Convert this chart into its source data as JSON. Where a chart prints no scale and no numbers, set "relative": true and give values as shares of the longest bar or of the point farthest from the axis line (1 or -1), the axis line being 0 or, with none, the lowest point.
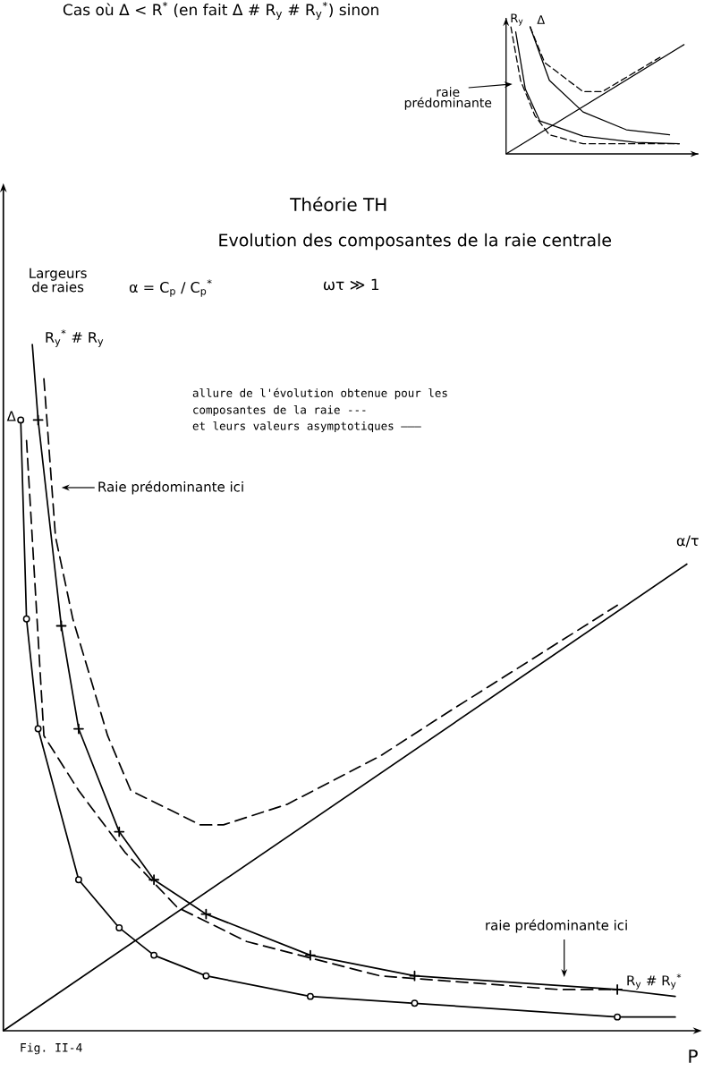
{
  "chart_data": [
    {
      "type": "line",
      "relative": true,
      "tick_labels": false,
      "annotations": [
        "Cas où Δ < R$^{*}$ (en fait Δ # R$_{y}$ # R$_{y}$$^{*}$) sinon",
        "R$_{y}$",
        "Δ",
        "raie prédominante"
      ],
      "categories": [
        null,
        null,
        null,
        null,
        null,
        null,
        null,
        null,
        null,
        null,
        null,
        null,
        null,
        null,
        null,
        null,
        null,
        null,
        null,
        null,
        null,
        null,
        null,
        null,
        null,
        null,
        null,
        null,
        null,
        null,
        null,
        null,
        null,
        null,
        null,
        null,
        null,
        null,
        null,
        null,
        null
      ],
      "series": [
        {
          "line_style": "dashed",
          "marker": "none",
          "color": "#000000",
          "values": [
            null,
            1,
            null,
            0.58,
            null,
            null,
            0.3,
            null,
            null,
            0.15,
            null,
            null,
            null,
            null,
            null,
            null,
            0.08,
            null,
            null,
            null,
            null,
            null,
            null,
            null,
            null,
            null,
            null,
            null,
            null,
            null,
            null,
            null,
            null,
            null,
            null,
            null,
            0.08,
            null,
            null,
            null,
            null
          ]
        },
        {
          "line_style": "solid",
          "marker": "none",
          "color": "#000000",
          "values": [
            null,
            null,
            0.96,
            null,
            0.51,
            null,
            null,
            0.26,
            null,
            null,
            null,
            null,
            null,
            null,
            null,
            null,
            0.14,
            null,
            null,
            null,
            null,
            null,
            null,
            null,
            null,
            null,
            null,
            0.09,
            null,
            null,
            null,
            null,
            null,
            null,
            null,
            null,
            0.08,
            null,
            null,
            null,
            null
          ]
        },
        {
          "line_style": "solid",
          "marker": "none",
          "color": "#000000",
          "values": [
            null,
            null,
            null,
            null,
            null,
            1,
            null,
            null,
            null,
            0.58,
            null,
            null,
            null,
            null,
            null,
            null,
            0.33,
            null,
            null,
            null,
            null,
            null,
            null,
            null,
            null,
            0.19,
            null,
            null,
            null,
            null,
            null,
            null,
            null,
            null,
            0.15,
            null,
            null,
            null,
            null,
            null,
            null
          ]
        },
        {
          "line_style": "dashed",
          "marker": "none",
          "color": "#000000",
          "values": [
            null,
            null,
            null,
            null,
            null,
            1,
            null,
            null,
            0.72,
            null,
            null,
            null,
            null,
            null,
            null,
            null,
            0.49,
            null,
            null,
            null,
            0.49,
            null,
            null,
            null,
            null,
            null,
            null,
            null,
            null,
            null,
            null,
            null,
            0.76,
            null,
            null,
            null,
            null,
            null,
            null,
            null,
            null
          ]
        },
        {
          "line_style": "solid",
          "marker": "none",
          "color": "#000000",
          "values": [
            0,
            null,
            null,
            null,
            null,
            null,
            null,
            null,
            null,
            null,
            null,
            null,
            null,
            null,
            null,
            null,
            null,
            null,
            null,
            null,
            null,
            null,
            null,
            null,
            null,
            null,
            null,
            null,
            null,
            null,
            null,
            null,
            null,
            null,
            null,
            null,
            null,
            0.86,
            null,
            null,
            null
          ]
        }
      ]
    },
    {
      "type": "line",
      "relative": true,
      "tick_labels": false,
      "title": "Théorie TH",
      "subtitle": "Evolution des composantes de la raie centrale",
      "xlabel": "P",
      "ylabel": "Largeurs de raies",
      "annotations": [
        "ωτ ≫ 1",
        "α = C$_{p}$ / C$_{p}$$^{*}$",
        "R$_{y}$$^{*}$ # R$_{y}$",
        "Δ",
        "allure de l'évolution obtenue pour les",
        "composantes de la raie ---",
        "et leurs valeurs asymptotiques ———",
        "Raie prédominante ici",
        "α/τ",
        "raie prédominante ici",
        "R$_{y}$ # R$_{y}$$^{*}$",
        "Fig. II-4"
      ],
      "categories": [
        null,
        null,
        null,
        null,
        null,
        null,
        null,
        null,
        null,
        null,
        null,
        null,
        null,
        null,
        null,
        null,
        null,
        null,
        null,
        null,
        null,
        null,
        null,
        null,
        null,
        null,
        null,
        null,
        null,
        null,
        null,
        null,
        null,
        null,
        null,
        null,
        null,
        null,
        null,
        null,
        null,
        null,
        null,
        null,
        null,
        null,
        null,
        null,
        null,
        null,
        null,
        null,
        null,
        null,
        null,
        null,
        null,
        null,
        null,
        null,
        null,
        null,
        null,
        null,
        null,
        null,
        null,
        null,
        null,
        null,
        null,
        null,
        null,
        null,
        null,
        null,
        null,
        null,
        null,
        null,
        null,
        null,
        null,
        null,
        null,
        null,
        null,
        null,
        null,
        null,
        null,
        null,
        null,
        null,
        null,
        null,
        null,
        null,
        null,
        null,
        null,
        null,
        null,
        null,
        null,
        null,
        null,
        null,
        null,
        null,
        null,
        null,
        null,
        null,
        null,
        null,
        null,
        null,
        null,
        null,
        null
      ],
      "series": [
        {
          "line_style": "solid",
          "marker": "circle",
          "color": "#000000",
          "values": [
            null,
            null,
            null,
            0.89,
            0.6,
            null,
            0.44,
            null,
            null,
            null,
            null,
            null,
            null,
            0.22,
            null,
            null,
            null,
            null,
            null,
            null,
            0.15,
            null,
            null,
            null,
            null,
            null,
            0.11,
            null,
            null,
            null,
            null,
            null,
            null,
            null,
            null,
            0.08,
            null,
            null,
            null,
            null,
            null,
            null,
            null,
            null,
            null,
            null,
            null,
            null,
            null,
            null,
            null,
            null,
            null,
            0.05,
            null,
            null,
            null,
            null,
            null,
            null,
            null,
            null,
            null,
            null,
            null,
            null,
            null,
            null,
            null,
            null,
            null,
            0.04,
            null,
            null,
            null,
            null,
            null,
            null,
            null,
            null,
            null,
            null,
            null,
            null,
            null,
            null,
            null,
            null,
            null,
            null,
            null,
            null,
            null,
            null,
            null,
            null,
            null,
            null,
            null,
            null,
            null,
            null,
            null,
            null,
            null,
            null,
            0.02,
            null,
            null,
            null,
            null,
            null,
            null,
            null,
            null,
            null,
            null,
            null,
            null,
            null,
            null
          ]
        },
        {
          "line_style": "solid",
          "marker": "cross",
          "color": "#000000",
          "values": [
            null,
            null,
            null,
            null,
            null,
            null,
            0.89,
            null,
            null,
            null,
            0.59,
            null,
            null,
            0.44,
            null,
            null,
            null,
            null,
            null,
            null,
            0.29,
            null,
            null,
            null,
            null,
            null,
            0.22,
            null,
            null,
            null,
            null,
            null,
            null,
            null,
            null,
            0.17,
            null,
            null,
            null,
            null,
            null,
            null,
            null,
            null,
            null,
            null,
            null,
            null,
            null,
            null,
            null,
            null,
            null,
            0.11,
            null,
            null,
            null,
            null,
            null,
            null,
            null,
            null,
            null,
            null,
            null,
            null,
            null,
            null,
            null,
            null,
            null,
            0.08,
            null,
            null,
            null,
            null,
            null,
            null,
            null,
            null,
            null,
            null,
            null,
            null,
            null,
            null,
            null,
            null,
            null,
            null,
            null,
            null,
            null,
            null,
            null,
            null,
            null,
            null,
            null,
            null,
            null,
            null,
            null,
            null,
            null,
            null,
            0.06,
            null,
            null,
            null,
            null,
            null,
            null,
            null,
            null,
            null,
            null,
            null,
            null,
            null,
            null
          ]
        },
        {
          "line_style": "dashed",
          "marker": "none",
          "color": "#000000",
          "values": [
            null,
            null,
            null,
            null,
            null,
            null,
            null,
            0.95,
            null,
            0.72,
            null,
            null,
            0.6,
            null,
            null,
            null,
            null,
            null,
            0.43,
            null,
            null,
            null,
            0.35,
            null,
            null,
            null,
            null,
            null,
            null,
            null,
            null,
            null,
            null,
            null,
            0.3,
            null,
            null,
            null,
            0.3,
            null,
            null,
            null,
            null,
            null,
            null,
            null,
            null,
            null,
            null,
            0.33,
            null,
            null,
            null,
            null,
            null,
            null,
            null,
            null,
            null,
            null,
            null,
            null,
            null,
            null,
            null,
            0.4,
            null,
            null,
            null,
            null,
            null,
            null,
            null,
            null,
            null,
            null,
            0.46,
            null,
            null,
            null,
            null,
            null,
            null,
            null,
            null,
            null,
            null,
            null,
            null,
            null,
            null,
            null,
            null,
            null,
            null,
            null,
            null,
            null,
            null,
            null,
            null,
            null,
            null,
            null,
            null,
            null,
            0.62,
            null,
            null,
            null,
            null,
            null,
            null,
            null,
            null,
            null,
            null,
            null,
            null,
            null,
            null
          ]
        },
        {
          "line_style": "dashed",
          "marker": "none",
          "color": "#000000",
          "values": [
            null,
            null,
            null,
            null,
            0.86,
            null,
            null,
            0.43,
            null,
            null,
            null,
            null,
            null,
            0.35,
            null,
            null,
            null,
            null,
            null,
            null,
            null,
            0.26,
            null,
            null,
            null,
            null,
            null,
            null,
            null,
            null,
            0.18,
            null,
            null,
            null,
            null,
            null,
            null,
            null,
            null,
            null,
            null,
            null,
            0.13,
            null,
            null,
            null,
            null,
            null,
            null,
            null,
            null,
            null,
            null,
            null,
            null,
            null,
            null,
            null,
            null,
            null,
            null,
            null,
            null,
            null,
            null,
            0.08,
            null,
            null,
            null,
            null,
            null,
            null,
            null,
            null,
            null,
            null,
            null,
            null,
            null,
            null,
            null,
            null,
            null,
            null,
            null,
            null,
            null,
            null,
            null,
            null,
            null,
            null,
            null,
            null,
            null,
            null,
            0.06,
            null,
            null,
            null,
            null,
            null,
            null,
            null,
            null,
            0.06,
            null,
            null,
            null,
            null,
            null,
            null,
            null,
            null,
            null,
            null,
            null,
            null,
            null,
            null,
            null
          ]
        },
        {
          "line_style": "solid",
          "marker": "none",
          "color": "#000000",
          "values": [
            0,
            null,
            null,
            null,
            null,
            null,
            null,
            null,
            null,
            null,
            null,
            null,
            null,
            null,
            null,
            null,
            null,
            null,
            null,
            null,
            null,
            null,
            null,
            null,
            null,
            null,
            null,
            null,
            null,
            null,
            null,
            null,
            null,
            null,
            null,
            null,
            null,
            null,
            null,
            null,
            null,
            null,
            null,
            null,
            null,
            null,
            null,
            null,
            null,
            null,
            null,
            null,
            null,
            null,
            null,
            null,
            null,
            null,
            null,
            null,
            null,
            null,
            null,
            null,
            null,
            null,
            null,
            null,
            null,
            null,
            null,
            null,
            null,
            null,
            null,
            null,
            null,
            null,
            null,
            null,
            null,
            null,
            null,
            null,
            null,
            null,
            null,
            null,
            null,
            null,
            null,
            null,
            null,
            null,
            null,
            null,
            null,
            null,
            null,
            null,
            null,
            null,
            null,
            null,
            null,
            null,
            null,
            null,
            null,
            null,
            null,
            null,
            null,
            null,
            null,
            null,
            null,
            null,
            0.68,
            null,
            null
          ]
        },
        {
          "line_style": "solid",
          "marker": "none",
          "color": "#000000",
          "values": [
            null,
            null,
            null,
            null,
            null,
            1,
            0.89,
            null,
            null,
            null,
            null,
            null,
            null,
            null,
            null,
            null,
            null,
            null,
            null,
            null,
            null,
            null,
            null,
            null,
            null,
            null,
            null,
            null,
            null,
            null,
            null,
            null,
            null,
            null,
            null,
            null,
            null,
            null,
            null,
            null,
            null,
            null,
            null,
            null,
            null,
            null,
            null,
            null,
            null,
            null,
            null,
            null,
            null,
            null,
            null,
            null,
            null,
            null,
            null,
            null,
            null,
            null,
            null,
            null,
            null,
            null,
            null,
            null,
            null,
            null,
            null,
            null,
            null,
            null,
            null,
            null,
            null,
            null,
            null,
            null,
            null,
            null,
            null,
            null,
            null,
            null,
            null,
            null,
            null,
            null,
            null,
            null,
            null,
            null,
            null,
            null,
            null,
            null,
            null,
            null,
            null,
            null,
            null,
            null,
            null,
            null,
            null,
            null,
            null,
            null,
            null,
            null,
            null,
            null,
            null,
            null,
            null,
            null,
            null,
            null,
            null
          ]
        },
        {
          "line_style": "solid",
          "marker": "none",
          "color": "#000000",
          "values": [
            null,
            null,
            null,
            null,
            null,
            null,
            null,
            null,
            null,
            null,
            null,
            null,
            null,
            null,
            null,
            null,
            null,
            null,
            null,
            null,
            null,
            null,
            null,
            null,
            null,
            null,
            null,
            null,
            null,
            null,
            null,
            null,
            null,
            null,
            null,
            null,
            null,
            null,
            null,
            null,
            null,
            null,
            null,
            null,
            null,
            null,
            null,
            null,
            null,
            null,
            null,
            null,
            null,
            null,
            null,
            null,
            null,
            null,
            null,
            null,
            null,
            null,
            null,
            null,
            null,
            null,
            null,
            null,
            null,
            null,
            null,
            null,
            null,
            null,
            null,
            null,
            null,
            null,
            null,
            null,
            null,
            null,
            null,
            null,
            null,
            null,
            null,
            null,
            null,
            null,
            null,
            null,
            null,
            null,
            null,
            null,
            null,
            null,
            null,
            null,
            null,
            null,
            null,
            null,
            null,
            null,
            0.06,
            null,
            null,
            null,
            null,
            null,
            null,
            null,
            null,
            null,
            0.05,
            null,
            null,
            null,
            null
          ]
        },
        {
          "line_style": "solid",
          "marker": "none",
          "color": "#000000",
          "values": [
            null,
            null,
            null,
            null,
            null,
            null,
            null,
            null,
            null,
            null,
            null,
            null,
            null,
            null,
            null,
            null,
            null,
            null,
            null,
            null,
            null,
            null,
            null,
            null,
            null,
            null,
            null,
            null,
            null,
            null,
            null,
            null,
            null,
            null,
            null,
            null,
            null,
            null,
            null,
            null,
            null,
            null,
            null,
            null,
            null,
            null,
            null,
            null,
            null,
            null,
            null,
            null,
            null,
            null,
            null,
            null,
            null,
            null,
            null,
            null,
            null,
            null,
            null,
            null,
            null,
            null,
            null,
            null,
            null,
            null,
            null,
            null,
            null,
            null,
            null,
            null,
            null,
            null,
            null,
            null,
            null,
            null,
            null,
            null,
            null,
            null,
            null,
            null,
            null,
            null,
            null,
            null,
            null,
            null,
            null,
            null,
            null,
            null,
            null,
            null,
            null,
            null,
            null,
            null,
            null,
            null,
            0.02,
            null,
            null,
            null,
            null,
            null,
            null,
            null,
            null,
            null,
            0.02,
            null,
            null,
            null,
            null
          ]
        }
      ]
    }
  ]
}
